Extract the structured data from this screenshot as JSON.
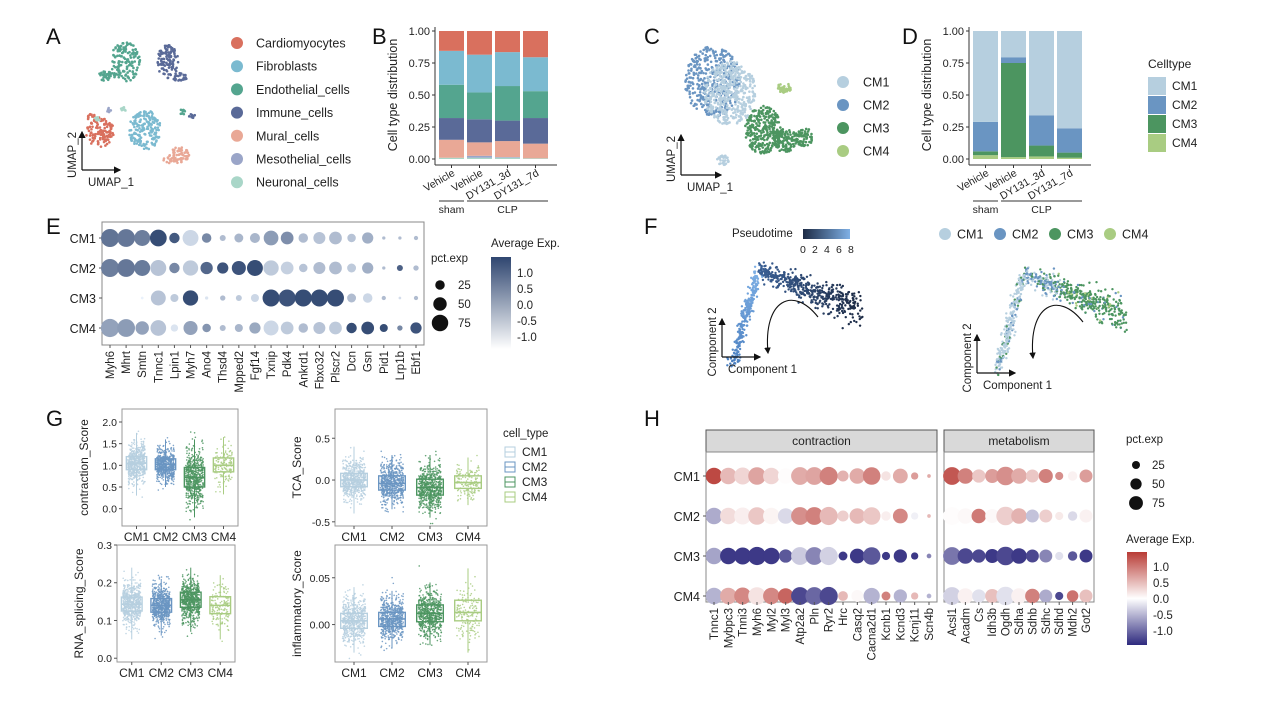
{
  "panels": {
    "A": "A",
    "B": "B",
    "C": "C",
    "D": "D",
    "E": "E",
    "F": "F",
    "G": "G",
    "H": "H"
  },
  "colors": {
    "Cardiomyocytes": "#d9705e",
    "Fibroblasts": "#7bbad0",
    "Endothelial_cells": "#54a58f",
    "Immune_cells": "#5a6a98",
    "Mural_cells": "#e9a896",
    "Mesothelial_cells": "#9aa5c8",
    "Neuronal_cells": "#a9d6c8",
    "CM1": "#b6cfdf",
    "CM2": "#6a95c2",
    "CM3": "#4c9560",
    "CM4": "#a9cc82",
    "blue_low": "#e9f1fb",
    "blue_high": "#2f4670",
    "rb_low": "#2e2a7e",
    "rb_mid": "#ffffff",
    "rb_high": "#b83b35"
  },
  "chart_data": [
    {
      "id": "A",
      "type": "scatter",
      "subtype": "umap",
      "xlabel": "UMAP_1",
      "ylabel": "UMAP_2",
      "legend": [
        "Cardiomyocytes",
        "Fibroblasts",
        "Endothelial_cells",
        "Immune_cells",
        "Mural_cells",
        "Mesothelial_cells",
        "Neuronal_cells"
      ],
      "legend_position": "right"
    },
    {
      "id": "B",
      "type": "bar",
      "stacked": true,
      "ylabel": "Cell type distribution",
      "ylim": [
        0,
        1
      ],
      "yticks": [
        "0.00",
        "0.25",
        "0.50",
        "0.75",
        "1.00"
      ],
      "categories": [
        "Vehicle",
        "Vehicle",
        "DY131_3d",
        "DY131_7d"
      ],
      "groups": [
        {
          "label": "sham",
          "span": [
            0,
            0
          ]
        },
        {
          "label": "CLP",
          "span": [
            1,
            3
          ]
        }
      ],
      "series": [
        {
          "name": "Neuronal_cells",
          "values": [
            0.01,
            0.01,
            0.01,
            0.005
          ]
        },
        {
          "name": "Mesothelial_cells",
          "values": [
            0.0,
            0.015,
            0.005,
            0.0
          ]
        },
        {
          "name": "Mural_cells",
          "values": [
            0.14,
            0.105,
            0.125,
            0.115
          ]
        },
        {
          "name": "Immune_cells",
          "values": [
            0.17,
            0.18,
            0.16,
            0.2
          ]
        },
        {
          "name": "Endothelial_cells",
          "values": [
            0.26,
            0.21,
            0.27,
            0.21
          ]
        },
        {
          "name": "Fibroblasts",
          "values": [
            0.265,
            0.295,
            0.265,
            0.265
          ]
        },
        {
          "name": "Cardiomyocytes",
          "values": [
            0.155,
            0.185,
            0.165,
            0.205
          ]
        }
      ]
    },
    {
      "id": "C",
      "type": "scatter",
      "subtype": "umap",
      "xlabel": "UMAP_1",
      "ylabel": "UMAP_2",
      "legend": [
        "CM1",
        "CM2",
        "CM3",
        "CM4"
      ],
      "legend_position": "right"
    },
    {
      "id": "D",
      "type": "bar",
      "stacked": true,
      "ylabel": "Cell type distribution",
      "ylim": [
        0,
        1
      ],
      "yticks": [
        "0.00",
        "0.25",
        "0.50",
        "0.75",
        "1.00"
      ],
      "categories": [
        "Vehicle",
        "Vehicle",
        "DY131_3d",
        "DY131_7d"
      ],
      "groups": [
        {
          "label": "sham",
          "span": [
            0,
            0
          ]
        },
        {
          "label": "CLP",
          "span": [
            1,
            3
          ]
        }
      ],
      "legend_title": "Celltype",
      "series": [
        {
          "name": "CM4",
          "values": [
            0.03,
            0.015,
            0.02,
            0.01
          ]
        },
        {
          "name": "CM3",
          "values": [
            0.03,
            0.735,
            0.085,
            0.04
          ]
        },
        {
          "name": "CM2",
          "values": [
            0.23,
            0.045,
            0.235,
            0.19
          ]
        },
        {
          "name": "CM1",
          "values": [
            0.71,
            0.205,
            0.66,
            0.76
          ]
        }
      ]
    },
    {
      "id": "E",
      "type": "scatter",
      "subtype": "dotplot",
      "rows": [
        "CM1",
        "CM2",
        "CM3",
        "CM4"
      ],
      "genes": [
        "Myh6",
        "Mhrt",
        "Smtn",
        "Tnnc1",
        "Lpin1",
        "Myh7",
        "Ano4",
        "Thsd4",
        "Mpped2",
        "Fgf14",
        "Txnip",
        "Pdk4",
        "Ankrd1",
        "Fbxo32",
        "Plscr2",
        "Dcn",
        "Gsn",
        "Pid1",
        "Lrp1b",
        "Ebf1"
      ],
      "pct_exp": [
        [
          90,
          88,
          70,
          78,
          30,
          70,
          25,
          10,
          22,
          28,
          60,
          45,
          25,
          40,
          45,
          20,
          35,
          3,
          3,
          5
        ],
        [
          90,
          88,
          70,
          70,
          30,
          65,
          42,
          35,
          55,
          70,
          65,
          45,
          20,
          40,
          45,
          22,
          35,
          3,
          10,
          8
        ],
        [
          0,
          0,
          2,
          62,
          18,
          65,
          3,
          8,
          10,
          18,
          80,
          80,
          80,
          80,
          80,
          22,
          25,
          5,
          2,
          5
        ],
        [
          92,
          88,
          50,
          68,
          15,
          55,
          20,
          10,
          18,
          35,
          62,
          45,
          25,
          40,
          45,
          30,
          45,
          18,
          8,
          35
        ]
      ],
      "avg_exp": [
        [
          0.6,
          0.55,
          0.45,
          1.2,
          1.0,
          -0.9,
          0.3,
          -0.5,
          -0.4,
          -0.4,
          0.0,
          0.2,
          -0.5,
          -0.6,
          -0.5,
          -0.6,
          -0.3,
          -0.5,
          -0.5,
          -0.5
        ],
        [
          0.45,
          0.55,
          0.5,
          -0.6,
          0.3,
          -0.7,
          0.8,
          1.1,
          1.1,
          1.2,
          -0.7,
          -0.8,
          -0.6,
          -0.5,
          -0.5,
          -0.7,
          -0.3,
          -0.5,
          0.9,
          -0.5
        ],
        [
          -1.3,
          -1.3,
          -1.3,
          -0.6,
          -0.7,
          1.2,
          -1.1,
          -0.5,
          -0.7,
          -0.9,
          1.2,
          1.1,
          1.2,
          1.2,
          1.2,
          -0.5,
          -0.9,
          -0.5,
          -1.0,
          -0.5
        ],
        [
          -0.1,
          0.0,
          -0.1,
          -0.6,
          -1.1,
          -0.1,
          0.1,
          -0.5,
          -0.4,
          -0.2,
          -0.9,
          -0.7,
          -0.5,
          -0.6,
          -0.7,
          1.2,
          1.2,
          1.2,
          0.3,
          1.1
        ]
      ],
      "size_legend_title": "pct.exp",
      "size_legend": [
        25,
        50,
        75
      ],
      "color_legend_title": "Average Exp.",
      "color_ticks": [
        "1.0",
        "0.5",
        "0.0",
        "-0.5",
        "-1.0"
      ],
      "color_range": [
        -1.3,
        1.3
      ]
    },
    {
      "id": "F1",
      "type": "scatter",
      "subtype": "trajectory",
      "xlabel": "Component 1",
      "ylabel": "Component 2",
      "color_legend_title": "Pseudotime",
      "color_ticks": [
        "0",
        "2",
        "4",
        "6",
        "8"
      ],
      "color_range": [
        0,
        8
      ]
    },
    {
      "id": "F2",
      "type": "scatter",
      "subtype": "trajectory",
      "xlabel": "Component 1",
      "ylabel": "Component 2",
      "legend": [
        "CM1",
        "CM2",
        "CM3",
        "CM4"
      ],
      "legend_position": "top"
    },
    {
      "id": "G1",
      "type": "scatter",
      "subtype": "boxplot",
      "ylabel": "contraction_Score",
      "categories": [
        "CM1",
        "CM2",
        "CM3",
        "CM4"
      ],
      "ylim": [
        -0.4,
        2.3
      ],
      "yticks": [
        0.0,
        0.5,
        1.0,
        1.5,
        2.0
      ],
      "ytick_labels": [
        "0.0",
        "0.5",
        "1.0",
        "1.5",
        "2.0"
      ],
      "box": [
        {
          "min": 0.3,
          "q1": 0.9,
          "median": 1.05,
          "q3": 1.2,
          "max": 1.75,
          "pt_min": -0.05,
          "pt_max": 2.2
        },
        {
          "min": 0.5,
          "q1": 0.9,
          "median": 1.02,
          "q3": 1.15,
          "max": 1.6,
          "pt_min": 0.05,
          "pt_max": 1.75
        },
        {
          "min": -0.2,
          "q1": 0.5,
          "median": 0.72,
          "q3": 0.95,
          "max": 1.6,
          "pt_min": -0.35,
          "pt_max": 1.85
        },
        {
          "min": 0.33,
          "q1": 0.85,
          "median": 1.0,
          "q3": 1.17,
          "max": 1.65,
          "pt_min": 0.0,
          "pt_max": 2.0
        }
      ]
    },
    {
      "id": "G2",
      "type": "scatter",
      "subtype": "boxplot",
      "ylabel": "TCA_Score",
      "categories": [
        "CM1",
        "CM2",
        "CM3",
        "CM4"
      ],
      "ylim": [
        -0.55,
        0.85
      ],
      "yticks": [
        -0.5,
        0.0,
        0.5
      ],
      "ytick_labels": [
        "-0.5",
        "0.0",
        "0.5"
      ],
      "legend_title": "cell_type",
      "legend": [
        "CM1",
        "CM2",
        "CM3",
        "CM4"
      ],
      "box": [
        {
          "min": -0.4,
          "q1": -0.08,
          "median": 0.0,
          "q3": 0.08,
          "max": 0.4,
          "pt_min": -0.42,
          "pt_max": 0.78
        },
        {
          "min": -0.35,
          "q1": -0.12,
          "median": -0.04,
          "q3": 0.05,
          "max": 0.3,
          "pt_min": -0.38,
          "pt_max": 0.45
        },
        {
          "min": -0.45,
          "q1": -0.18,
          "median": -0.09,
          "q3": 0.01,
          "max": 0.3,
          "pt_min": -0.52,
          "pt_max": 0.5
        },
        {
          "min": -0.3,
          "q1": -0.1,
          "median": -0.03,
          "q3": 0.05,
          "max": 0.27,
          "pt_min": -0.32,
          "pt_max": 0.65
        }
      ]
    },
    {
      "id": "G3",
      "type": "scatter",
      "subtype": "boxplot",
      "ylabel": "RNA_splicing_Score",
      "categories": [
        "CM1",
        "CM2",
        "CM3",
        "CM4"
      ],
      "ylim": [
        -0.01,
        0.3
      ],
      "yticks": [
        0.0,
        0.1,
        0.2,
        0.3
      ],
      "ytick_labels": [
        "0.0",
        "0.1",
        "0.2",
        "0.3"
      ],
      "box": [
        {
          "min": 0.05,
          "q1": 0.125,
          "median": 0.143,
          "q3": 0.162,
          "max": 0.24,
          "pt_min": 0.005,
          "pt_max": 0.27
        },
        {
          "min": 0.06,
          "q1": 0.122,
          "median": 0.14,
          "q3": 0.158,
          "max": 0.21,
          "pt_min": 0.012,
          "pt_max": 0.245
        },
        {
          "min": 0.07,
          "q1": 0.135,
          "median": 0.155,
          "q3": 0.175,
          "max": 0.24,
          "pt_min": 0.03,
          "pt_max": 0.285
        },
        {
          "min": 0.05,
          "q1": 0.118,
          "median": 0.14,
          "q3": 0.163,
          "max": 0.22,
          "pt_min": 0.045,
          "pt_max": 0.22
        }
      ]
    },
    {
      "id": "G4",
      "type": "scatter",
      "subtype": "boxplot",
      "ylabel": "inflammatory_Score",
      "categories": [
        "CM1",
        "CM2",
        "CM3",
        "CM4"
      ],
      "ylim": [
        -0.04,
        0.085
      ],
      "yticks": [
        0.0,
        0.05
      ],
      "ytick_labels": [
        "0.00",
        "0.05"
      ],
      "box": [
        {
          "min": -0.03,
          "q1": -0.004,
          "median": 0.004,
          "q3": 0.012,
          "max": 0.04,
          "pt_min": -0.04,
          "pt_max": 0.055
        },
        {
          "min": -0.025,
          "q1": -0.002,
          "median": 0.006,
          "q3": 0.013,
          "max": 0.036,
          "pt_min": -0.035,
          "pt_max": 0.06
        },
        {
          "min": -0.022,
          "q1": 0.003,
          "median": 0.012,
          "q3": 0.021,
          "max": 0.045,
          "pt_min": -0.028,
          "pt_max": 0.08
        },
        {
          "min": -0.03,
          "q1": 0.004,
          "median": 0.013,
          "q3": 0.026,
          "max": 0.06,
          "pt_min": -0.03,
          "pt_max": 0.06
        }
      ]
    },
    {
      "id": "H",
      "type": "scatter",
      "subtype": "dotplot",
      "rows": [
        "CM1",
        "CM2",
        "CM3",
        "CM4"
      ],
      "facets": [
        {
          "label": "contraction",
          "genes": [
            "Tnnc1",
            "Mybpc3",
            "Tnni3",
            "Myh6",
            "Myl2",
            "Myl3",
            "Atp2a2",
            "Pln",
            "Ryr2",
            "Hrc",
            "Casq2",
            "Cacna2d1",
            "Kcnb1",
            "Kcnd3",
            "Kcnj11",
            "Scn4b"
          ],
          "pct_exp": [
            [
              62,
              62,
              65,
              70,
              62,
              55,
              72,
              72,
              75,
              28,
              55,
              70,
              20,
              50,
              12,
              3
            ],
            [
              62,
              62,
              65,
              70,
              62,
              55,
              72,
              72,
              75,
              28,
              55,
              70,
              20,
              50,
              12,
              3
            ],
            [
              62,
              62,
              65,
              75,
              62,
              40,
              72,
              72,
              75,
              18,
              50,
              70,
              15,
              40,
              12,
              5
            ],
            [
              62,
              62,
              65,
              70,
              62,
              55,
              72,
              72,
              75,
              22,
              32,
              60,
              18,
              40,
              12,
              5
            ]
          ],
          "avg_exp": [
            [
              1.3,
              0.5,
              0.3,
              0.65,
              0.3,
              0.02,
              0.6,
              0.65,
              0.9,
              0.55,
              0.6,
              0.9,
              0.2,
              0.6,
              0.7,
              0.6
            ],
            [
              -0.55,
              0.25,
              0.12,
              0.4,
              0.08,
              -0.25,
              0.8,
              0.9,
              0.5,
              0.35,
              0.5,
              0.4,
              0.12,
              0.85,
              -0.1,
              0.5
            ],
            [
              -0.6,
              -1.3,
              -1.3,
              -1.3,
              -1.3,
              -1.1,
              -0.35,
              -0.8,
              -0.3,
              -1.3,
              -1.3,
              -1.1,
              -1.3,
              -1.3,
              -1.3,
              -0.8
            ],
            [
              -0.5,
              0.6,
              0.85,
              0.2,
              0.85,
              1.1,
              -1.2,
              -1.0,
              -1.2,
              0.5,
              0.05,
              -0.5,
              0.9,
              -0.5,
              0.5,
              -0.5
            ]
          ]
        },
        {
          "label": "metabolism",
          "genes": [
            "Acsl1",
            "Acadm",
            "Cs",
            "Idh3b",
            "Ogdh",
            "Sdha",
            "Sdhb",
            "Sdhc",
            "Sdhd",
            "Mdh2",
            "Got2"
          ],
          "pct_exp": [
            [
              72,
              55,
              40,
              45,
              78,
              55,
              38,
              45,
              15,
              20,
              38
            ],
            [
              72,
              55,
              48,
              45,
              78,
              55,
              38,
              38,
              15,
              20,
              38
            ],
            [
              72,
              55,
              40,
              45,
              78,
              55,
              38,
              38,
              15,
              20,
              38
            ],
            [
              72,
              55,
              40,
              45,
              78,
              55,
              48,
              38,
              15,
              30,
              38
            ]
          ],
          "avg_exp": [
            [
              1.2,
              0.9,
              0.4,
              0.7,
              0.8,
              0.6,
              0.4,
              0.9,
              0.8,
              0.1,
              0.7
            ],
            [
              0.02,
              0.05,
              0.95,
              0.05,
              0.35,
              0.55,
              -0.4,
              0.35,
              0.15,
              -0.25,
              0.1
            ],
            [
              -0.9,
              -1.2,
              -1.2,
              -1.3,
              -1.2,
              -1.3,
              -1.2,
              -0.8,
              -0.2,
              -1.1,
              -1.3
            ],
            [
              -0.3,
              0.1,
              -0.2,
              0.45,
              -0.2,
              0.1,
              0.9,
              -0.55,
              -1.2,
              1.0,
              0.45
            ]
          ]
        }
      ],
      "size_legend_title": "pct.exp",
      "size_legend": [
        25,
        50,
        75
      ],
      "color_legend_title": "Average Exp.",
      "color_ticks": [
        "1.0",
        "0.5",
        "0.0",
        "-0.5",
        "-1.0"
      ],
      "color_range": [
        -1.4,
        1.4
      ]
    }
  ]
}
